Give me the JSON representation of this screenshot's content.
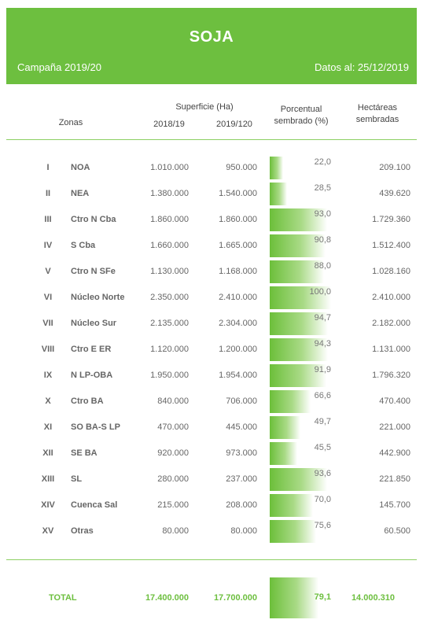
{
  "header": {
    "title": "SOJA",
    "campaign": "Campaña 2019/20",
    "date": "Datos al: 25/12/2019"
  },
  "columns": {
    "zonas": "Zonas",
    "superficie": "Superficie (Ha)",
    "year1": "2018/19",
    "year2": "2019/120",
    "porcentual_line1": "Porcentual",
    "porcentual_line2": "sembrado (%)",
    "hectareas_line1": "Hectáreas",
    "hectareas_line2": "sembradas"
  },
  "rows": [
    {
      "num": "I",
      "zone": "NOA",
      "s1": "1.010.000",
      "s2": "950.000",
      "pct": "22,0",
      "pct_value": 22.0,
      "ha": "209.100"
    },
    {
      "num": "II",
      "zone": "NEA",
      "s1": "1.380.000",
      "s2": "1.540.000",
      "pct": "28,5",
      "pct_value": 28.5,
      "ha": "439.620"
    },
    {
      "num": "III",
      "zone": "Ctro N Cba",
      "s1": "1.860.000",
      "s2": "1.860.000",
      "pct": "93,0",
      "pct_value": 93.0,
      "ha": "1.729.360"
    },
    {
      "num": "IV",
      "zone": "S Cba",
      "s1": "1.660.000",
      "s2": "1.665.000",
      "pct": "90,8",
      "pct_value": 90.8,
      "ha": "1.512.400"
    },
    {
      "num": "V",
      "zone": "Ctro N SFe",
      "s1": "1.130.000",
      "s2": "1.168.000",
      "pct": "88,0",
      "pct_value": 88.0,
      "ha": "1.028.160"
    },
    {
      "num": "VI",
      "zone": "Núcleo Norte",
      "s1": "2.350.000",
      "s2": "2.410.000",
      "pct": "100,0",
      "pct_value": 100.0,
      "ha": "2.410.000"
    },
    {
      "num": "VII",
      "zone": "Núcleo Sur",
      "s1": "2.135.000",
      "s2": "2.304.000",
      "pct": "94,7",
      "pct_value": 94.7,
      "ha": "2.182.000"
    },
    {
      "num": "VIII",
      "zone": "Ctro E ER",
      "s1": "1.120.000",
      "s2": "1.200.000",
      "pct": "94,3",
      "pct_value": 94.3,
      "ha": "1.131.000"
    },
    {
      "num": "IX",
      "zone": "N LP-OBA",
      "s1": "1.950.000",
      "s2": "1.954.000",
      "pct": "91,9",
      "pct_value": 91.9,
      "ha": "1.796.320"
    },
    {
      "num": "X",
      "zone": "Ctro BA",
      "s1": "840.000",
      "s2": "706.000",
      "pct": "66,6",
      "pct_value": 66.6,
      "ha": "470.400"
    },
    {
      "num": "XI",
      "zone": "SO BA-S LP",
      "s1": "470.000",
      "s2": "445.000",
      "pct": "49,7",
      "pct_value": 49.7,
      "ha": "221.000"
    },
    {
      "num": "XII",
      "zone": "SE BA",
      "s1": "920.000",
      "s2": "973.000",
      "pct": "45,5",
      "pct_value": 45.5,
      "ha": "442.900"
    },
    {
      "num": "XIII",
      "zone": "SL",
      "s1": "280.000",
      "s2": "237.000",
      "pct": "93,6",
      "pct_value": 93.6,
      "ha": "221.850"
    },
    {
      "num": "XIV",
      "zone": "Cuenca Sal",
      "s1": "215.000",
      "s2": "208.000",
      "pct": "70,0",
      "pct_value": 70.0,
      "ha": "145.700"
    },
    {
      "num": "XV",
      "zone": "Otras",
      "s1": "80.000",
      "s2": "80.000",
      "pct": "75,6",
      "pct_value": 75.6,
      "ha": "60.500"
    }
  ],
  "total": {
    "label": "TOTAL",
    "s1": "17.400.000",
    "s2": "17.700.000",
    "pct": "79,1",
    "pct_value": 79.1,
    "ha": "14.000.310"
  },
  "colors": {
    "brand_green": "#6dbf3f",
    "rule_green": "#8ccf63"
  }
}
